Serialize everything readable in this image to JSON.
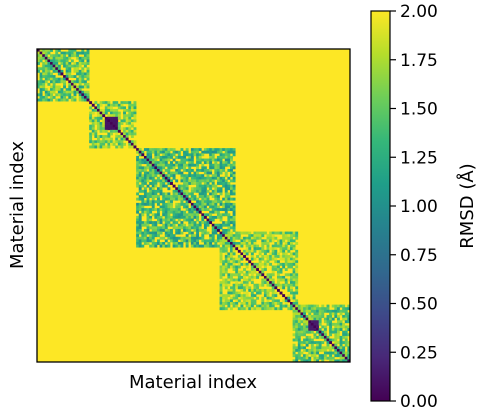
{
  "chart_data": {
    "type": "heatmap",
    "title": "",
    "xlabel": "Material index",
    "ylabel": "Material index",
    "xticks": [],
    "yticks": [],
    "colorbar": {
      "label": "RMSD (Å)",
      "colormap": "viridis",
      "vmin": 0.0,
      "vmax": 2.0,
      "ticks": [
        "0.00",
        "0.25",
        "0.50",
        "0.75",
        "1.00",
        "1.25",
        "1.50",
        "1.75",
        "2.00"
      ],
      "colors": [
        "#440154",
        "#482878",
        "#3e4989",
        "#31688e",
        "#26828e",
        "#1f9e89",
        "#35b779",
        "#6ece58",
        "#b5de2b",
        "#fde725"
      ]
    },
    "matrix_description": {
      "n_materials_approx": 120,
      "diagonal_value": 0.0,
      "background_value": 2.0,
      "clusters": [
        {
          "start": 0,
          "end": 20,
          "typical_rmsd": 1.45
        },
        {
          "start": 20,
          "end": 38,
          "typical_rmsd": 1.55
        },
        {
          "start": 38,
          "end": 76,
          "typical_rmsd": 1.35
        },
        {
          "start": 70,
          "end": 100,
          "typical_rmsd": 1.55
        },
        {
          "start": 98,
          "end": 120,
          "typical_rmsd": 1.45
        }
      ],
      "dark_blocks": [
        {
          "start": 26,
          "end": 31,
          "value": 0.1
        },
        {
          "start": 104,
          "end": 108,
          "value": 0.15
        }
      ]
    }
  }
}
